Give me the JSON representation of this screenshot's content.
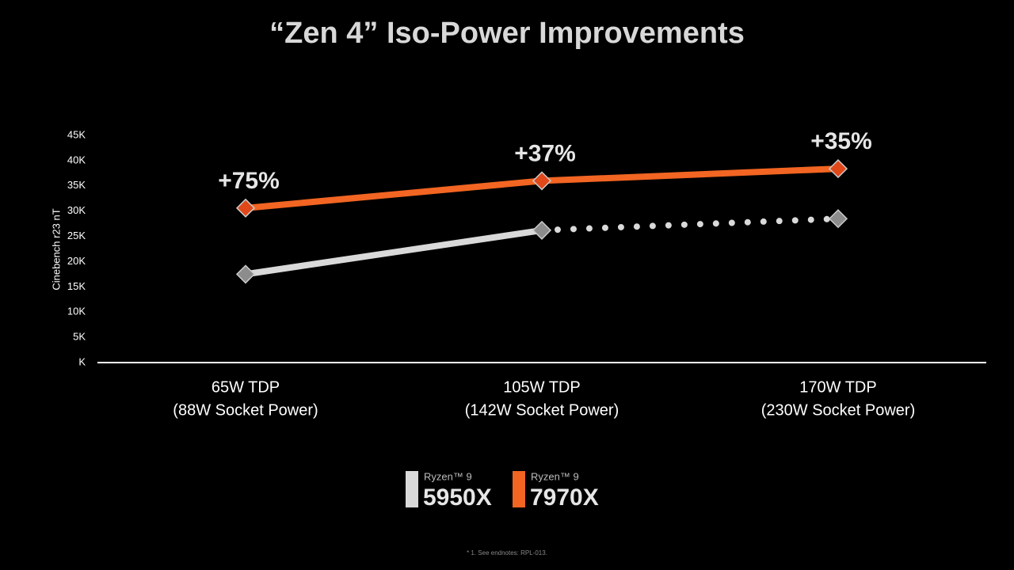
{
  "chart_data": {
    "type": "line",
    "title": "“Zen 4” Iso-Power Improvements",
    "y_label": "Cinebench r23 nT",
    "categories": [
      "65W TDP",
      "105W TDP",
      "170W TDP"
    ],
    "category_notes": [
      "(88W Socket Power)",
      "(142W Socket Power)",
      "(230W Socket Power)"
    ],
    "ylim": [
      0,
      45000
    ],
    "yticks": [
      {
        "value": 0,
        "label": "K"
      },
      {
        "value": 5000,
        "label": "5K"
      },
      {
        "value": 10000,
        "label": "10K"
      },
      {
        "value": 15000,
        "label": "15K"
      },
      {
        "value": 20000,
        "label": "20K"
      },
      {
        "value": 25000,
        "label": "25K"
      },
      {
        "value": 30000,
        "label": "30K"
      },
      {
        "value": 35000,
        "label": "35K"
      },
      {
        "value": 40000,
        "label": "40K"
      },
      {
        "value": 45000,
        "label": "45K"
      }
    ],
    "series": [
      {
        "name": "5950X",
        "brand": "Ryzen™ 9",
        "color": "#d9d9d9",
        "marker_color": "#8c8c8c",
        "segment_styles": [
          "solid",
          "dotted"
        ],
        "values": [
          17500,
          26200,
          28500
        ]
      },
      {
        "name": "7970X",
        "brand": "Ryzen™ 9",
        "color": "#f26522",
        "marker_color": "#e0481a",
        "segment_styles": [
          "solid",
          "solid"
        ],
        "values": [
          30600,
          36000,
          38400
        ],
        "annotations": [
          "+75%",
          "+37%",
          "+35%"
        ]
      }
    ],
    "footnote": "* 1. See endnotes: RPL-013."
  }
}
